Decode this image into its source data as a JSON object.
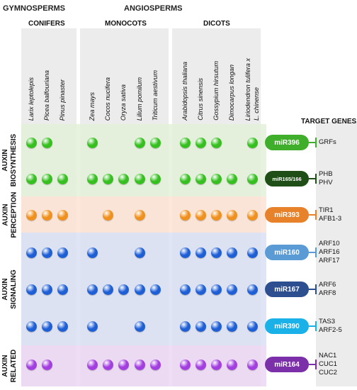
{
  "headers": {
    "gymnosperms": "GYMNOSPERMS",
    "angiosperms": "ANGIOSPERMS",
    "conifers": "CONIFERS",
    "monocots": "MONOCOTS",
    "dicots": "DICOTS",
    "target_genes": "TARGET GENES"
  },
  "species": [
    "Larix leptolepis",
    "Picea balfouriana",
    "Pinus pinaster",
    "Zea mays",
    "Cocos nucifera",
    "Oryza sativa",
    "Lilium pomilum",
    "Triticum aestivum",
    "Arabidopsis thaliana",
    "Citrus sinensis",
    "Gossypium hirsutum",
    "Dimocarpus longan",
    "Liriodendron tulifera x",
    "L. chinense"
  ],
  "bands": [
    {
      "label": "AUXIN BIOSYNTHESIS",
      "color": "#e4f1d9"
    },
    {
      "label": "AUXIN PERCEPTION",
      "color": "#fbe3d3"
    },
    {
      "label": "AUXIN SIGNALING",
      "color": "#d9e1f2"
    },
    {
      "label": "AUXIN RELATED",
      "color": "#ebd7f3"
    }
  ],
  "rows": [
    {
      "mirna": "miR396",
      "mir_color": "#3fae2a",
      "dot_color": "#35c01f",
      "presence": [
        1,
        1,
        0,
        1,
        0,
        0,
        1,
        1,
        1,
        1,
        1,
        0,
        1
      ],
      "targets": [
        "GRFs"
      ]
    },
    {
      "mirna": "miR165/166",
      "mir_color": "#1f4f16",
      "dot_color": "#35c01f",
      "presence": [
        1,
        1,
        1,
        1,
        1,
        1,
        1,
        1,
        1,
        1,
        1,
        1,
        1
      ],
      "targets": [
        "PHB",
        "PHV"
      ]
    },
    {
      "mirna": "miR393",
      "mir_color": "#e8822a",
      "dot_color": "#f0901d",
      "presence": [
        1,
        1,
        1,
        0,
        1,
        0,
        1,
        0,
        1,
        1,
        1,
        1,
        1
      ],
      "targets": [
        "TIR1",
        "AFB1-3"
      ]
    },
    {
      "mirna": "miR160",
      "mir_color": "#5b9bd5",
      "dot_color": "#1f5fd6",
      "presence": [
        1,
        1,
        1,
        1,
        0,
        0,
        1,
        0,
        1,
        1,
        1,
        1,
        1
      ],
      "targets": [
        "ARF10",
        "ARF16",
        "ARF17"
      ]
    },
    {
      "mirna": "miR167",
      "mir_color": "#2e4f8f",
      "dot_color": "#1f5fd6",
      "presence": [
        1,
        1,
        1,
        1,
        1,
        1,
        1,
        1,
        1,
        1,
        1,
        1,
        1
      ],
      "targets": [
        "ARF6",
        "ARF8"
      ]
    },
    {
      "mirna": "miR390",
      "mir_color": "#1ab0e8",
      "dot_color": "#1f5fd6",
      "presence": [
        1,
        1,
        1,
        1,
        0,
        0,
        1,
        0,
        1,
        1,
        1,
        1,
        1
      ],
      "targets": [
        "TAS3",
        "ARF2-5"
      ]
    },
    {
      "mirna": "miR164",
      "mir_color": "#7b2fa8",
      "dot_color": "#a33ee0",
      "presence": [
        1,
        1,
        0,
        1,
        1,
        1,
        1,
        1,
        1,
        1,
        1,
        1,
        1
      ],
      "targets": [
        "NAC1",
        "CUC1",
        "CUC2"
      ]
    }
  ]
}
